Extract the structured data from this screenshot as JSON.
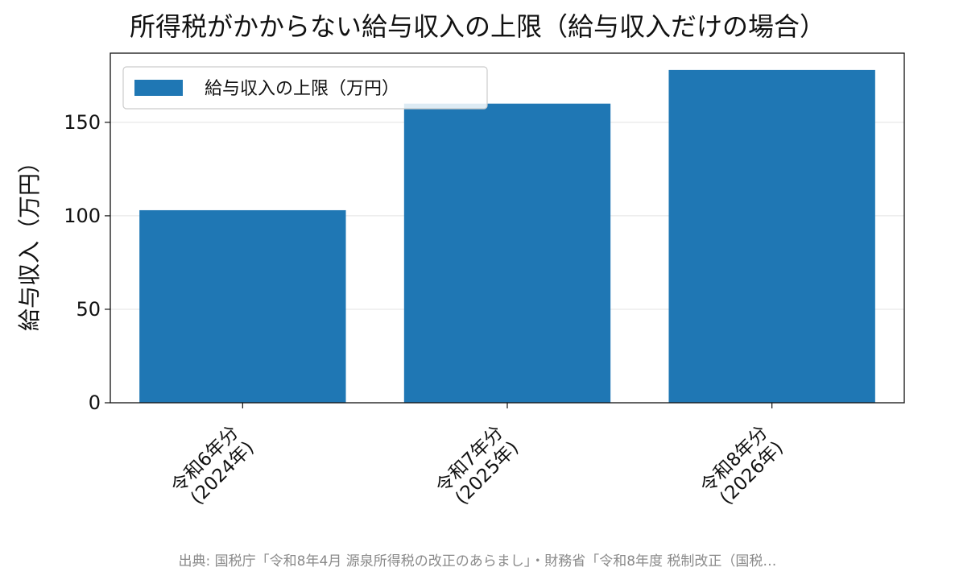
{
  "chart_data": {
    "type": "bar",
    "title": "所得税がかからない給与収入の上限（給与収入だけの場合）",
    "categories": [
      [
        "令和6年分",
        "(2024年)"
      ],
      [
        "令和7年分",
        "(2025年)"
      ],
      [
        "令和8年分",
        "(2026年)"
      ]
    ],
    "series": [
      {
        "name": "給与収入の上限（万円）",
        "values": [
          103,
          160,
          178
        ],
        "color": "#1f77b4"
      }
    ],
    "xlabel": "",
    "ylabel": "給与収入（万円）",
    "ylim": [
      0,
      187
    ],
    "yticks": [
      0,
      50,
      100,
      150
    ],
    "grid": "y",
    "legend": "top-left"
  },
  "footer": {
    "source": "出典: 国税庁「令和8年4月 源泉所得税の改正のあらまし」・財務省「令和8年度 税制改正（国税…"
  }
}
